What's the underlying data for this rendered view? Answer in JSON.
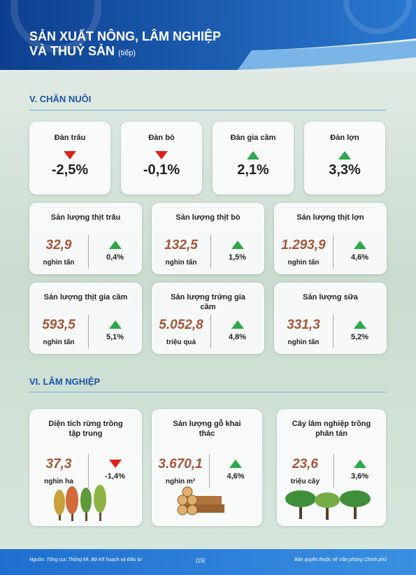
{
  "header": {
    "title_line1": "SẢN XUẤT NÔNG, LÂM NGHIỆP",
    "title_line2": "VÀ THUỶ SẢN",
    "title_suffix": "(tiếp)"
  },
  "livestock": {
    "title": "V. CHĂN NUÔI",
    "herds": [
      {
        "label": "Đàn trâu",
        "change": "-2,5%"
      },
      {
        "label": "Đàn bò",
        "change": "-0,1%"
      },
      {
        "label": "Đàn gia cầm",
        "change": "2,1%"
      },
      {
        "label": "Đàn lợn",
        "change": "3,3%"
      }
    ],
    "production": [
      {
        "label": "Sản lượng thịt trâu",
        "value": "32,9",
        "unit": "nghìn tấn",
        "change": "0,4%"
      },
      {
        "label": "Sản lượng thịt bò",
        "value": "132,5",
        "unit": "nghìn tấn",
        "change": "1,5%"
      },
      {
        "label": "Sản lượng thịt lợn",
        "value": "1.293,9",
        "unit": "nghìn tấn",
        "change": "4,6%"
      },
      {
        "label": "Sản lượng thịt gia cầm",
        "value": "593,5",
        "unit": "nghìn tấn",
        "change": "5,1%"
      },
      {
        "label": "Sản lượng trứng gia cầm",
        "value": "5.052,8",
        "unit": "triệu quả",
        "change": "4,8%"
      },
      {
        "label": "Sản lượng sữa",
        "value": "331,3",
        "unit": "nghìn tấn",
        "change": "5,2%"
      }
    ]
  },
  "forestry": {
    "title": "VI. LÂM NGHIỆP",
    "items": [
      {
        "label": "Diện tích rừng trồng tập trung",
        "value": "37,3",
        "unit": "nghìn ha",
        "change": "-1,4%"
      },
      {
        "label": "Sản lượng gỗ khai thác",
        "value": "3.670,1",
        "unit": "nghìn m³",
        "change": "4,6%"
      },
      {
        "label": "Cây lâm nghiệp trồng phân tán",
        "value": "23,6",
        "unit": "triệu cây",
        "change": "3,6%"
      }
    ]
  },
  "footer": {
    "source": "Nguồn: Tổng cục Thống kê, Bộ Kế hoạch và Đầu tư",
    "page": "|15|",
    "copyright": "Bản quyền thuộc về Văn phòng Chính phủ"
  }
}
